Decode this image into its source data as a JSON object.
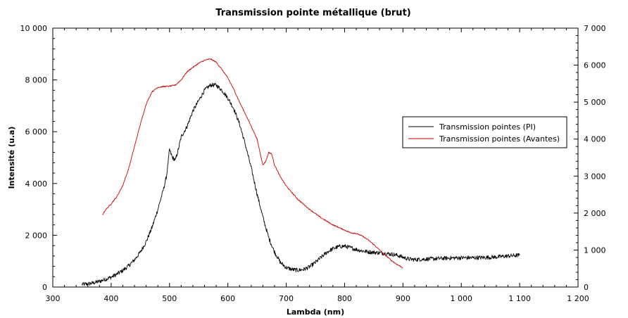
{
  "chart_data": {
    "type": "line",
    "title": "Transmission pointe métallique (brut)",
    "xlabel": "Lambda (nm)",
    "ylabel": "Intensité (u.a)",
    "xlim": [
      300,
      1200
    ],
    "ylim": [
      0,
      10000
    ],
    "y2lim": [
      0,
      7000
    ],
    "grid": false,
    "legend_position": "right",
    "x_ticks": [
      300,
      400,
      500,
      600,
      700,
      800,
      900,
      1000,
      1100,
      1200
    ],
    "x_tick_labels": [
      "300",
      "400",
      "500",
      "600",
      "700",
      "800",
      "900",
      "1 000",
      "1 100",
      "1 200"
    ],
    "y_ticks": [
      0,
      2000,
      4000,
      6000,
      8000,
      10000
    ],
    "y_tick_labels": [
      "0",
      "2 000",
      "4 000",
      "6 000",
      "8 000",
      "10 000"
    ],
    "y2_ticks": [
      0,
      1000,
      2000,
      3000,
      4000,
      5000,
      6000,
      7000
    ],
    "y2_tick_labels": [
      "0",
      "1 000",
      "2 000",
      "3 000",
      "4 000",
      "5 000",
      "6 000",
      "7 000"
    ],
    "series": [
      {
        "name": "Transmission pointes (PI)",
        "color": "#000000",
        "axis": "left",
        "noise_amplitude": 80,
        "x": [
          350,
          360,
          370,
          380,
          390,
          400,
          410,
          420,
          430,
          440,
          450,
          460,
          470,
          480,
          490,
          495,
          500,
          505,
          510,
          515,
          520,
          530,
          540,
          550,
          560,
          570,
          580,
          590,
          600,
          610,
          620,
          630,
          640,
          650,
          660,
          670,
          680,
          690,
          700,
          710,
          720,
          730,
          740,
          750,
          760,
          770,
          780,
          790,
          800,
          810,
          820,
          830,
          840,
          850,
          860,
          870,
          880,
          890,
          900,
          910,
          920,
          940,
          960,
          980,
          1000,
          1020,
          1040,
          1060,
          1080,
          1100
        ],
        "y": [
          100,
          120,
          160,
          220,
          300,
          380,
          500,
          640,
          820,
          1050,
          1350,
          1750,
          2300,
          3000,
          3800,
          4300,
          5300,
          5000,
          4900,
          5300,
          5800,
          6200,
          6800,
          7200,
          7600,
          7800,
          7800,
          7600,
          7300,
          6900,
          6300,
          5500,
          4600,
          3600,
          2700,
          1900,
          1350,
          950,
          750,
          680,
          650,
          680,
          780,
          950,
          1150,
          1350,
          1480,
          1560,
          1580,
          1520,
          1450,
          1400,
          1360,
          1340,
          1320,
          1300,
          1270,
          1230,
          1150,
          1080,
          1060,
          1080,
          1100,
          1120,
          1130,
          1130,
          1140,
          1160,
          1200,
          1230
        ]
      },
      {
        "name": "Transmission pointes (Avantes)",
        "color": "#cc0000",
        "axis": "right",
        "noise_amplitude": 15,
        "x": [
          385,
          390,
          400,
          410,
          420,
          430,
          440,
          450,
          460,
          470,
          480,
          490,
          500,
          510,
          520,
          530,
          540,
          550,
          560,
          570,
          580,
          590,
          600,
          610,
          620,
          630,
          640,
          650,
          655,
          660,
          665,
          670,
          675,
          680,
          690,
          700,
          720,
          740,
          760,
          780,
          800,
          810,
          820,
          830,
          840,
          850,
          860,
          870,
          880,
          890,
          900
        ],
        "y": [
          1950,
          2080,
          2250,
          2450,
          2750,
          3200,
          3800,
          4400,
          4950,
          5280,
          5400,
          5420,
          5430,
          5460,
          5600,
          5820,
          5940,
          6050,
          6130,
          6170,
          6080,
          5880,
          5650,
          5350,
          5000,
          4680,
          4350,
          4000,
          3650,
          3300,
          3400,
          3640,
          3600,
          3300,
          2980,
          2730,
          2370,
          2100,
          1870,
          1680,
          1540,
          1470,
          1450,
          1380,
          1280,
          1150,
          1000,
          860,
          720,
          610,
          520
        ]
      }
    ]
  }
}
